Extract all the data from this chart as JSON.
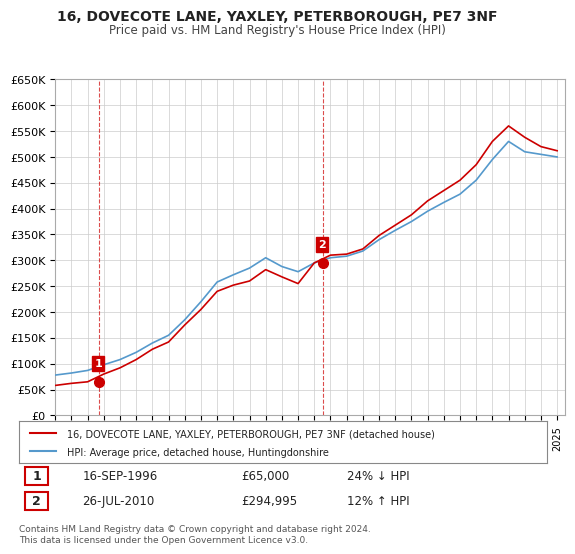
{
  "title": "16, DOVECOTE LANE, YAXLEY, PETERBOROUGH, PE7 3NF",
  "subtitle": "Price paid vs. HM Land Registry's House Price Index (HPI)",
  "ylabel": "",
  "xlabel": "",
  "ylim": [
    0,
    650000
  ],
  "yticks": [
    0,
    50000,
    100000,
    150000,
    200000,
    250000,
    300000,
    350000,
    400000,
    450000,
    500000,
    550000,
    600000,
    650000
  ],
  "ytick_labels": [
    "£0",
    "£50K",
    "£100K",
    "£150K",
    "£200K",
    "£250K",
    "£300K",
    "£350K",
    "£400K",
    "£450K",
    "£500K",
    "£550K",
    "£600K",
    "£650K"
  ],
  "xlim_start": 1994.0,
  "xlim_end": 2025.5,
  "sale1_x": 1996.71,
  "sale1_y": 65000,
  "sale1_label": "1",
  "sale1_date": "16-SEP-1996",
  "sale1_price": "£65,000",
  "sale1_hpi": "24% ↓ HPI",
  "sale2_x": 2010.56,
  "sale2_y": 294995,
  "sale2_label": "2",
  "sale2_date": "26-JUL-2010",
  "sale2_price": "£294,995",
  "sale2_hpi": "12% ↑ HPI",
  "line_color_price": "#cc0000",
  "line_color_hpi": "#5599cc",
  "dashed_line_color": "#cc0000",
  "background_color": "#ffffff",
  "grid_color": "#cccccc",
  "legend_label_price": "16, DOVECOTE LANE, YAXLEY, PETERBOROUGH, PE7 3NF (detached house)",
  "legend_label_hpi": "HPI: Average price, detached house, Huntingdonshire",
  "footer": "Contains HM Land Registry data © Crown copyright and database right 2024.\nThis data is licensed under the Open Government Licence v3.0.",
  "hpi_years": [
    1994,
    1995,
    1996,
    1997,
    1998,
    1999,
    2000,
    2001,
    2002,
    2003,
    2004,
    2005,
    2006,
    2007,
    2008,
    2009,
    2010,
    2011,
    2012,
    2013,
    2014,
    2015,
    2016,
    2017,
    2018,
    2019,
    2020,
    2021,
    2022,
    2023,
    2024,
    2025
  ],
  "hpi_values": [
    78000,
    82000,
    87000,
    98000,
    108000,
    122000,
    140000,
    155000,
    185000,
    220000,
    258000,
    272000,
    285000,
    305000,
    288000,
    278000,
    295000,
    305000,
    308000,
    318000,
    340000,
    358000,
    375000,
    395000,
    412000,
    428000,
    455000,
    495000,
    530000,
    510000,
    505000,
    500000
  ],
  "price_years": [
    1994,
    1995,
    1996,
    1997,
    1998,
    1999,
    2000,
    2001,
    2002,
    2003,
    2004,
    2005,
    2006,
    2007,
    2008,
    2009,
    2010,
    2011,
    2012,
    2013,
    2014,
    2015,
    2016,
    2017,
    2018,
    2019,
    2020,
    2021,
    2022,
    2023,
    2024,
    2025
  ],
  "price_values": [
    58000,
    62000,
    65000,
    80000,
    92000,
    108000,
    128000,
    142000,
    175000,
    205000,
    240000,
    252000,
    260000,
    282000,
    268000,
    255000,
    294995,
    310000,
    312000,
    322000,
    348000,
    368000,
    388000,
    415000,
    435000,
    455000,
    485000,
    530000,
    560000,
    538000,
    520000,
    512000
  ]
}
